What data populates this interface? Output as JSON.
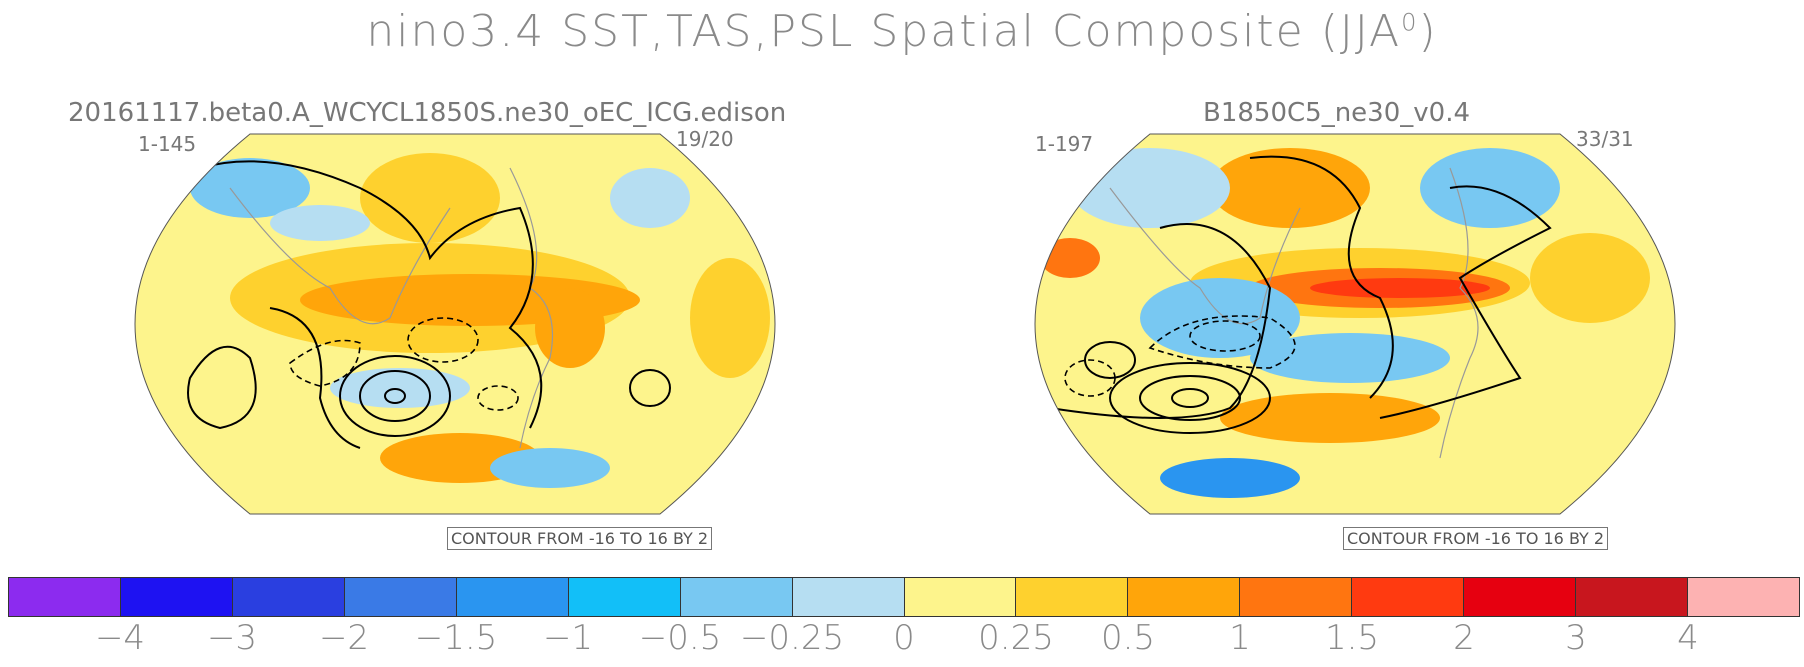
{
  "title": "nino3.4 SST,TAS,PSL Spatial Composite (JJA",
  "title_sup": "0",
  "title_close": ")",
  "chart_data": [
    {
      "type": "heatmap",
      "projection": "robinson",
      "title": "20161117.beta0.A_WCYCL1850S.ne30_oEC_ICG.edison",
      "years": "1-145",
      "counts": "19/20",
      "contour_note": "CONTOUR FROM -16 TO 16 BY 2",
      "contour_range": [
        -16,
        16
      ],
      "contour_interval": 2
    },
    {
      "type": "heatmap",
      "projection": "robinson",
      "title": "B1850C5_ne30_v0.4",
      "years": "1-197",
      "counts": "33/31",
      "contour_note": "CONTOUR FROM -16 TO 16 BY 2",
      "contour_range": [
        -16,
        16
      ],
      "contour_interval": 2
    }
  ],
  "colorbar": {
    "labels": [
      "−4",
      "−3",
      "−2",
      "−1.5",
      "−1",
      "−0.5",
      "−0.25",
      "0",
      "0.25",
      "0.5",
      "1",
      "1.5",
      "2",
      "3",
      "4"
    ],
    "colors": [
      "#8c2bef",
      "#1e12f2",
      "#2a3fe0",
      "#3a7ae6",
      "#2a95f0",
      "#12bff8",
      "#78c8f2",
      "#b6def2",
      "#fdf48c",
      "#fed12e",
      "#ffa50a",
      "#ff7510",
      "#ff3a10",
      "#e60010",
      "#c8161e",
      "#fdb2b2"
    ]
  }
}
